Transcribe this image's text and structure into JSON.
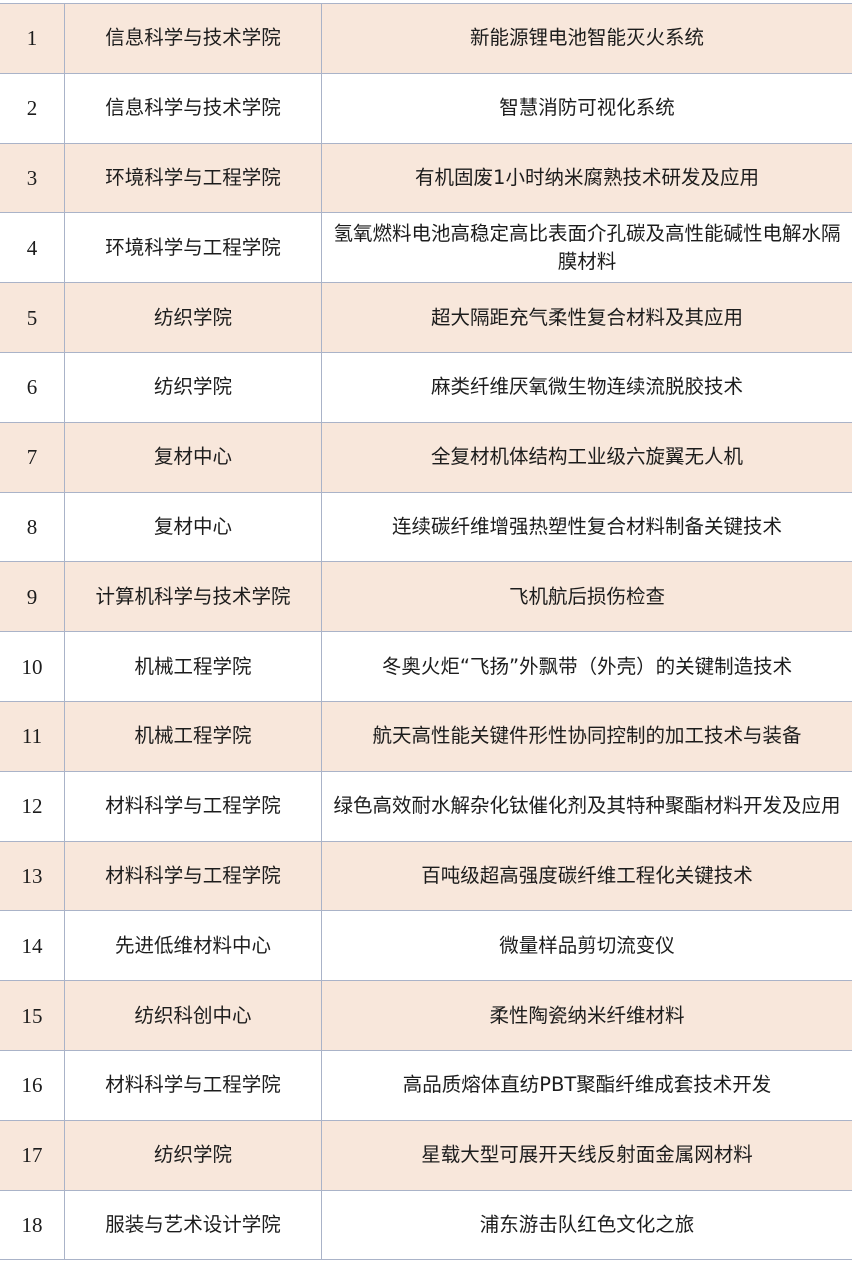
{
  "rows": [
    {
      "no": "1",
      "unit": "信息科学与技术学院",
      "project": "新能源锂电池智能灭火系统"
    },
    {
      "no": "2",
      "unit": "信息科学与技术学院",
      "project": "智慧消防可视化系统"
    },
    {
      "no": "3",
      "unit": "环境科学与工程学院",
      "project": "有机固废1小时纳米腐熟技术研发及应用"
    },
    {
      "no": "4",
      "unit": "环境科学与工程学院",
      "project": "氢氧燃料电池高稳定高比表面介孔碳及高性能碱性电解水隔膜材料"
    },
    {
      "no": "5",
      "unit": "纺织学院",
      "project": "超大隔距充气柔性复合材料及其应用"
    },
    {
      "no": "6",
      "unit": "纺织学院",
      "project": "麻类纤维厌氧微生物连续流脱胶技术"
    },
    {
      "no": "7",
      "unit": "复材中心",
      "project": "全复材机体结构工业级六旋翼无人机"
    },
    {
      "no": "8",
      "unit": "复材中心",
      "project": "连续碳纤维增强热塑性复合材料制备关键技术"
    },
    {
      "no": "9",
      "unit": "计算机科学与技术学院",
      "project": "飞机航后损伤检查"
    },
    {
      "no": "10",
      "unit": "机械工程学院",
      "project": "冬奥火炬“飞扬”外飘带（外壳）的关键制造技术"
    },
    {
      "no": "11",
      "unit": "机械工程学院",
      "project": "航天高性能关键件形性协同控制的加工技术与装备"
    },
    {
      "no": "12",
      "unit": "材料科学与工程学院",
      "project": "绿色高效耐水解杂化钛催化剂及其特种聚酯材料开发及应用"
    },
    {
      "no": "13",
      "unit": "材料科学与工程学院",
      "project": "百吨级超高强度碳纤维工程化关键技术"
    },
    {
      "no": "14",
      "unit": "先进低维材料中心",
      "project": "微量样品剪切流变仪"
    },
    {
      "no": "15",
      "unit": "纺织科创中心",
      "project": "柔性陶瓷纳米纤维材料"
    },
    {
      "no": "16",
      "unit": "材料科学与工程学院",
      "project": "高品质熔体直纺PBT聚酯纤维成套技术开发"
    },
    {
      "no": "17",
      "unit": "纺织学院",
      "project": "星载大型可展开天线反射面金属网材料"
    },
    {
      "no": "18",
      "unit": "服装与艺术设计学院",
      "project": "浦东游击队红色文化之旅"
    }
  ],
  "colors": {
    "stripe": "#f8e7db",
    "border": "#aab3c8",
    "text": "#1c1c1c"
  }
}
